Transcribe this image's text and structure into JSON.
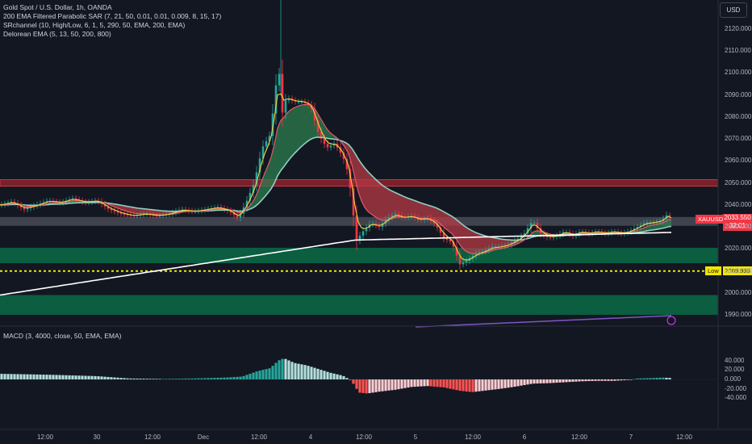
{
  "legend": {
    "title": "Gold Spot / U.S. Dollar, 1h, OANDA",
    "ind1": "200 EMA Filtered Parabolic SAR (7, 21, 50, 0.01, 0.01, 0.009, 8, 15, 17)",
    "ind2": "SRchannel (10, High/Low, 6, 1, 5, 290, 50, EMA, 200, EMA)",
    "ind3": "Delorean EMA (5, 13, 50, 200, 800)"
  },
  "macd_legend": "MACD (3, 4000, close, 50, EMA, EMA)",
  "currency_button": "USD",
  "price_label": {
    "symbol": "XAUUSD",
    "price": "2033.550",
    "countdown": "32:01"
  },
  "low_label": {
    "text": "Low",
    "value": "2009.936"
  },
  "colors": {
    "bg": "#131722",
    "up": "#26a69a",
    "down": "#f23645",
    "ema_teal": "#8fd1c1",
    "ema_white": "#ffffff",
    "ema_yellow": "#f5d142",
    "green_zone": "#0b6b45",
    "red_zone": "#a8242e"
  },
  "chart_data": {
    "type": "candlestick",
    "symbol": "XAUUSD",
    "interval": "1h",
    "x_ticks": [
      "12:00",
      "30",
      "12:00",
      "Dec",
      "12:00",
      "4",
      "12:00",
      "5",
      "12:00",
      "6",
      "12:00",
      "7",
      "12:00"
    ],
    "y_ticks": [
      "2120.000",
      "2110.000",
      "2100.000",
      "2090.000",
      "2080.000",
      "2070.000",
      "2060.000",
      "2050.000",
      "2040.000",
      "2030.000",
      "2020.000",
      "2010.000",
      "2000.000",
      "1990.000"
    ],
    "ylim": [
      1985,
      2126
    ],
    "last_price": 2033.55,
    "low": 2009.936,
    "zones": [
      {
        "type": "resistance",
        "from": 2048.5,
        "to": 2051.5
      },
      {
        "type": "pivot",
        "from": 2030.5,
        "to": 2034.5
      },
      {
        "type": "support",
        "from": 2013.5,
        "to": 2020.5
      },
      {
        "type": "support",
        "from": 1990.0,
        "to": 1999.0
      }
    ],
    "close_path": [
      [
        0,
        2040
      ],
      [
        15,
        2041.5
      ],
      [
        30,
        2038
      ],
      [
        45,
        2040
      ],
      [
        60,
        2042
      ],
      [
        75,
        2041
      ],
      [
        90,
        2043
      ],
      [
        105,
        2041
      ],
      [
        120,
        2042
      ],
      [
        135,
        2038
      ],
      [
        150,
        2036
      ],
      [
        165,
        2035
      ],
      [
        180,
        2036
      ],
      [
        195,
        2035
      ],
      [
        210,
        2036
      ],
      [
        225,
        2038
      ],
      [
        240,
        2037
      ],
      [
        255,
        2038
      ],
      [
        270,
        2039
      ],
      [
        285,
        2037
      ],
      [
        295,
        2034
      ],
      [
        305,
        2041
      ],
      [
        315,
        2050
      ],
      [
        325,
        2066
      ],
      [
        335,
        2072
      ],
      [
        345,
        2104
      ],
      [
        350,
        2082
      ],
      [
        355,
        2089
      ],
      [
        365,
        2087
      ],
      [
        375,
        2087
      ],
      [
        385,
        2085
      ],
      [
        395,
        2072
      ],
      [
        405,
        2066
      ],
      [
        415,
        2068
      ],
      [
        425,
        2062
      ],
      [
        432,
        2054
      ],
      [
        437,
        2038
      ],
      [
        442,
        2024
      ],
      [
        450,
        2028
      ],
      [
        460,
        2032
      ],
      [
        470,
        2030
      ],
      [
        480,
        2034
      ],
      [
        490,
        2036
      ],
      [
        500,
        2034
      ],
      [
        510,
        2035
      ],
      [
        520,
        2033
      ],
      [
        530,
        2034
      ],
      [
        540,
        2031
      ],
      [
        550,
        2025
      ],
      [
        560,
        2023
      ],
      [
        570,
        2013
      ],
      [
        580,
        2015
      ],
      [
        590,
        2018
      ],
      [
        600,
        2019
      ],
      [
        610,
        2021
      ],
      [
        620,
        2021
      ],
      [
        630,
        2022
      ],
      [
        640,
        2024
      ],
      [
        650,
        2027
      ],
      [
        660,
        2033
      ],
      [
        670,
        2027
      ],
      [
        680,
        2025
      ],
      [
        690,
        2026
      ],
      [
        700,
        2028
      ],
      [
        710,
        2026
      ],
      [
        720,
        2028
      ],
      [
        730,
        2027
      ],
      [
        740,
        2028
      ],
      [
        750,
        2027
      ],
      [
        760,
        2028
      ],
      [
        770,
        2027
      ],
      [
        780,
        2028
      ],
      [
        790,
        2030
      ],
      [
        800,
        2032
      ],
      [
        810,
        2032
      ],
      [
        820,
        2033
      ],
      [
        828,
        2036
      ],
      [
        832,
        2033.55
      ]
    ],
    "macd": {
      "ylim": [
        -45,
        50
      ],
      "y_ticks": [
        "40.000",
        "20.000",
        "0.000",
        "-20.000",
        "-40.000"
      ],
      "hist_path": [
        [
          0,
          12
        ],
        [
          60,
          10
        ],
        [
          120,
          7
        ],
        [
          160,
          2
        ],
        [
          200,
          1
        ],
        [
          240,
          2
        ],
        [
          280,
          4
        ],
        [
          300,
          6
        ],
        [
          320,
          18
        ],
        [
          335,
          24
        ],
        [
          345,
          40
        ],
        [
          352,
          45
        ],
        [
          365,
          35
        ],
        [
          380,
          30
        ],
        [
          395,
          22
        ],
        [
          410,
          14
        ],
        [
          425,
          8
        ],
        [
          432,
          1
        ],
        [
          436,
          -4
        ],
        [
          445,
          -28
        ],
        [
          455,
          -30
        ],
        [
          470,
          -26
        ],
        [
          490,
          -22
        ],
        [
          510,
          -16
        ],
        [
          530,
          -14
        ],
        [
          550,
          -17
        ],
        [
          570,
          -24
        ],
        [
          585,
          -27
        ],
        [
          600,
          -24
        ],
        [
          620,
          -20
        ],
        [
          640,
          -15
        ],
        [
          660,
          -9
        ],
        [
          680,
          -8
        ],
        [
          700,
          -6
        ],
        [
          720,
          -4
        ],
        [
          740,
          -3
        ],
        [
          760,
          -3
        ],
        [
          780,
          -1
        ],
        [
          790,
          2
        ],
        [
          810,
          3
        ],
        [
          820,
          4
        ],
        [
          833,
          3
        ]
      ]
    }
  }
}
